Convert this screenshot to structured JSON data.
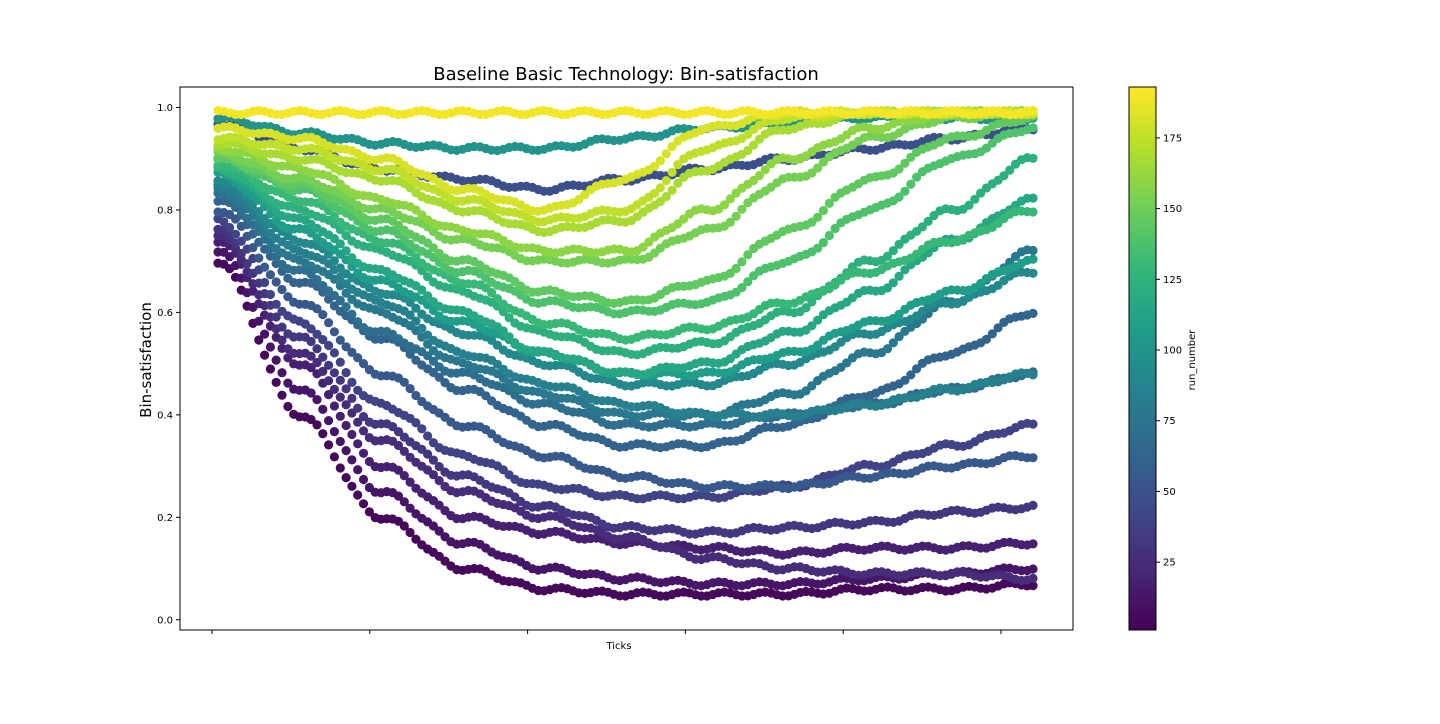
{
  "chart_data": {
    "type": "scatter",
    "title": "Baseline Basic Technology: Bin-satisfaction",
    "xlabel": "Ticks",
    "ylabel": "Bin-satisfaction",
    "colorbar_label": "run_number",
    "colormap": "viridis",
    "colorbar_range": [
      1,
      193
    ],
    "colorbar_ticks": [
      "25",
      "50",
      "75",
      "100",
      "125",
      "150",
      "175"
    ],
    "y_ticks": [
      "0.0",
      "0.2",
      "0.4",
      "0.6",
      "0.8",
      "1.0"
    ],
    "x_tick_count": 6,
    "x_tick_labels_shown": false,
    "ylim": [
      -0.02,
      1.04
    ],
    "grid": false,
    "legend": "none",
    "series": [
      {
        "run": 5,
        "values": [
          0.7,
          0.4,
          0.2,
          0.1,
          0.06,
          0.05,
          0.05,
          0.05,
          0.06,
          0.06,
          0.07
        ]
      },
      {
        "run": 12,
        "values": [
          0.72,
          0.45,
          0.25,
          0.15,
          0.1,
          0.08,
          0.07,
          0.07,
          0.08,
          0.09,
          0.1
        ]
      },
      {
        "run": 18,
        "values": [
          0.74,
          0.5,
          0.3,
          0.2,
          0.17,
          0.15,
          0.14,
          0.13,
          0.14,
          0.14,
          0.15
        ]
      },
      {
        "run": 25,
        "values": [
          0.75,
          0.52,
          0.35,
          0.25,
          0.2,
          0.16,
          0.12,
          0.1,
          0.09,
          0.09,
          0.08
        ]
      },
      {
        "run": 32,
        "values": [
          0.76,
          0.55,
          0.38,
          0.28,
          0.22,
          0.18,
          0.17,
          0.18,
          0.19,
          0.21,
          0.22
        ]
      },
      {
        "run": 40,
        "values": [
          0.78,
          0.58,
          0.42,
          0.32,
          0.26,
          0.24,
          0.24,
          0.26,
          0.3,
          0.34,
          0.38
        ]
      },
      {
        "run": 48,
        "values": [
          0.97,
          0.92,
          0.88,
          0.86,
          0.84,
          0.86,
          0.88,
          0.9,
          0.92,
          0.94,
          0.96
        ]
      },
      {
        "run": 55,
        "values": [
          0.8,
          0.62,
          0.48,
          0.38,
          0.32,
          0.28,
          0.26,
          0.26,
          0.28,
          0.3,
          0.32
        ]
      },
      {
        "run": 62,
        "values": [
          0.82,
          0.66,
          0.55,
          0.45,
          0.38,
          0.34,
          0.34,
          0.38,
          0.44,
          0.52,
          0.6
        ]
      },
      {
        "run": 70,
        "values": [
          0.83,
          0.68,
          0.56,
          0.48,
          0.42,
          0.38,
          0.38,
          0.4,
          0.42,
          0.45,
          0.48
        ]
      },
      {
        "run": 78,
        "values": [
          0.84,
          0.7,
          0.6,
          0.5,
          0.44,
          0.4,
          0.4,
          0.44,
          0.52,
          0.62,
          0.72
        ]
      },
      {
        "run": 85,
        "values": [
          0.85,
          0.72,
          0.62,
          0.52,
          0.46,
          0.42,
          0.4,
          0.4,
          0.42,
          0.45,
          0.48
        ]
      },
      {
        "run": 92,
        "values": [
          0.86,
          0.74,
          0.64,
          0.56,
          0.5,
          0.46,
          0.46,
          0.5,
          0.56,
          0.62,
          0.68
        ]
      },
      {
        "run": 100,
        "values": [
          0.98,
          0.95,
          0.93,
          0.92,
          0.92,
          0.94,
          0.96,
          0.97,
          0.98,
          0.98,
          0.98
        ]
      },
      {
        "run": 108,
        "values": [
          0.87,
          0.76,
          0.66,
          0.58,
          0.52,
          0.48,
          0.48,
          0.52,
          0.58,
          0.64,
          0.7
        ]
      },
      {
        "run": 115,
        "values": [
          0.88,
          0.78,
          0.68,
          0.6,
          0.52,
          0.48,
          0.5,
          0.56,
          0.64,
          0.74,
          0.82
        ]
      },
      {
        "run": 122,
        "values": [
          0.88,
          0.8,
          0.72,
          0.64,
          0.56,
          0.52,
          0.54,
          0.6,
          0.7,
          0.8,
          0.9
        ]
      },
      {
        "run": 130,
        "values": [
          0.89,
          0.82,
          0.74,
          0.66,
          0.58,
          0.55,
          0.57,
          0.62,
          0.68,
          0.74,
          0.8
        ]
      },
      {
        "run": 138,
        "values": [
          0.9,
          0.84,
          0.76,
          0.68,
          0.62,
          0.6,
          0.62,
          0.7,
          0.8,
          0.9,
          0.96
        ]
      },
      {
        "run": 145,
        "values": [
          0.9,
          0.85,
          0.78,
          0.7,
          0.64,
          0.62,
          0.66,
          0.76,
          0.86,
          0.94,
          0.98
        ]
      },
      {
        "run": 152,
        "values": [
          0.91,
          0.86,
          0.8,
          0.74,
          0.7,
          0.7,
          0.76,
          0.86,
          0.94,
          0.98,
          0.99
        ]
      },
      {
        "run": 160,
        "values": [
          0.92,
          0.88,
          0.82,
          0.76,
          0.72,
          0.72,
          0.8,
          0.9,
          0.96,
          0.99,
          0.99
        ]
      },
      {
        "run": 168,
        "values": [
          0.93,
          0.9,
          0.86,
          0.8,
          0.76,
          0.78,
          0.88,
          0.96,
          0.99,
          0.99,
          0.99
        ]
      },
      {
        "run": 175,
        "values": [
          0.94,
          0.92,
          0.88,
          0.82,
          0.78,
          0.8,
          0.92,
          0.98,
          0.99,
          0.99,
          0.99
        ]
      },
      {
        "run": 182,
        "values": [
          0.96,
          0.94,
          0.9,
          0.84,
          0.8,
          0.86,
          0.96,
          0.99,
          0.99,
          0.99,
          0.99
        ]
      },
      {
        "run": 190,
        "values": [
          0.99,
          0.99,
          0.99,
          0.99,
          0.99,
          0.99,
          0.99,
          0.99,
          0.99,
          0.99,
          0.99
        ]
      }
    ]
  }
}
